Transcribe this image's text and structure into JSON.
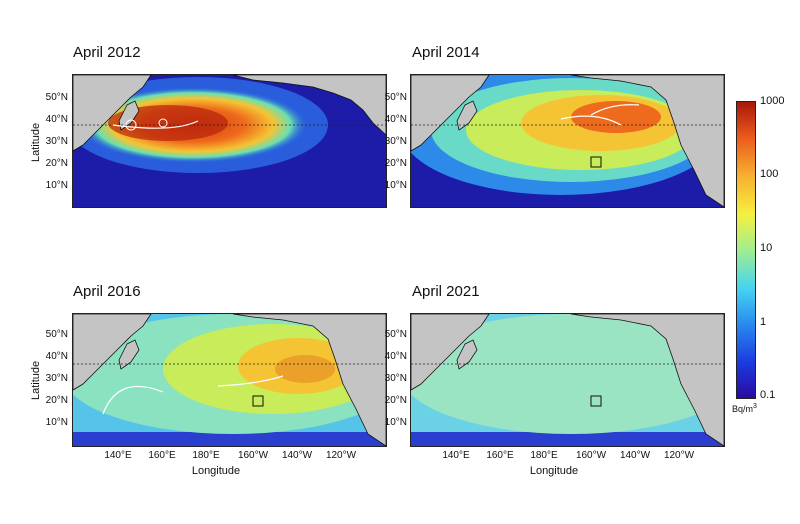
{
  "panels": [
    {
      "title": "April 2012"
    },
    {
      "title": "April 2014"
    },
    {
      "title": "April 2016"
    },
    {
      "title": "April 2021"
    }
  ],
  "axes": {
    "lat_ticks": [
      "50°N",
      "40°N",
      "30°N",
      "20°N",
      "10°N"
    ],
    "lon_ticks": [
      "140°E",
      "160°E",
      "180°E",
      "160°W",
      "140°W",
      "120°W"
    ],
    "xlabel": "Longitude",
    "ylabel": "Latitude"
  },
  "colorbar": {
    "ticks": [
      "1000",
      "100",
      "10",
      "1",
      "0.1"
    ],
    "unit": "Bq/m",
    "unit_sup": "3"
  }
}
